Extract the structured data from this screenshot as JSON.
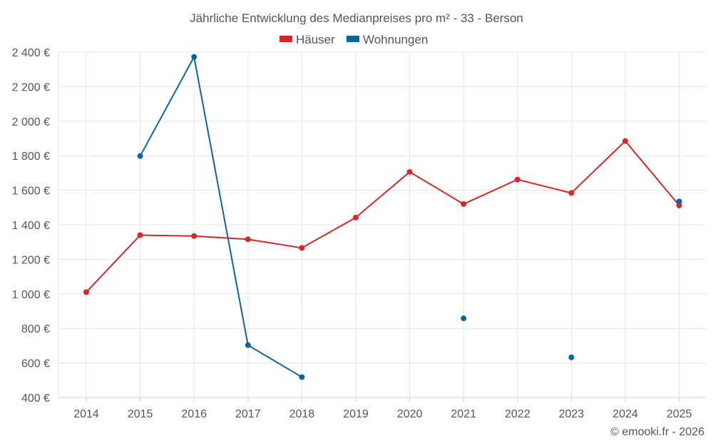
{
  "chart_data": {
    "type": "line",
    "title": "Jährliche Entwicklung des Medianpreises pro m² - 33 - Berson",
    "categories": [
      "2014",
      "2015",
      "2016",
      "2017",
      "2018",
      "2019",
      "2020",
      "2021",
      "2022",
      "2023",
      "2024",
      "2025"
    ],
    "series": [
      {
        "name": "Häuser",
        "color": "#d62728",
        "values": [
          1010,
          1340,
          1335,
          1316,
          1266,
          1442,
          1706,
          1520,
          1662,
          1584,
          1885,
          1512
        ]
      },
      {
        "name": "Wohnungen",
        "color": "#0b66a0",
        "values": [
          null,
          1798,
          2372,
          703,
          518,
          null,
          null,
          858,
          null,
          632,
          null,
          1535
        ]
      }
    ],
    "ylim": [
      400,
      2400
    ],
    "yticks": [
      400,
      600,
      800,
      1000,
      1200,
      1400,
      1600,
      1800,
      2000,
      2200,
      2400
    ],
    "ytick_labels": [
      "400 €",
      "600 €",
      "800 €",
      "1 000 €",
      "1 200 €",
      "1 400 €",
      "1 600 €",
      "1 800 €",
      "2 000 €",
      "2 200 €",
      "2 400 €"
    ],
    "grid": true,
    "legend_position": "top-center",
    "credit": "© emooki.fr - 2026"
  }
}
